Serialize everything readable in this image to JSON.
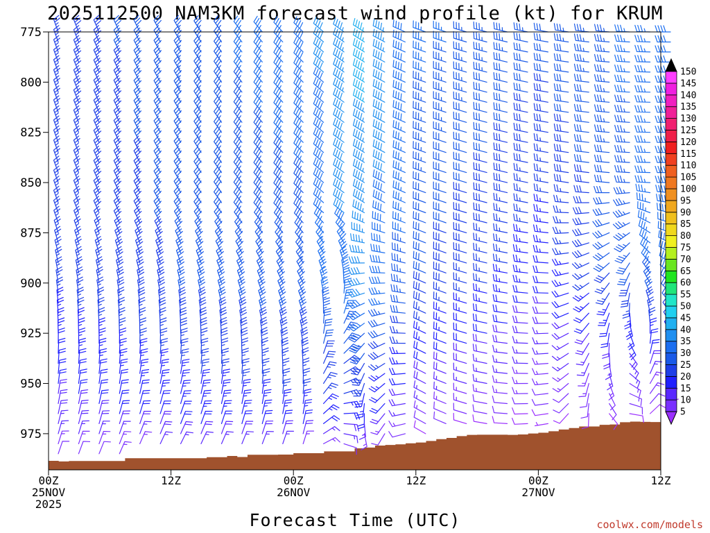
{
  "chart_data": {
    "type": "wind-barb-time-height",
    "title": "2025112500 NAM3KM forecast wind profile (kt) for KRUM",
    "xlabel": "Forecast Time (UTC)",
    "ylabel": "",
    "credit": "coolwx.com/models",
    "x_range_hours": [
      0,
      60
    ],
    "y_range_hpa": [
      775,
      993
    ],
    "y_ticks": [
      {
        "value": 775,
        "label": "775"
      },
      {
        "value": 800,
        "label": "800"
      },
      {
        "value": 825,
        "label": "825"
      },
      {
        "value": 850,
        "label": "850"
      },
      {
        "value": 875,
        "label": "875"
      },
      {
        "value": 900,
        "label": "900"
      },
      {
        "value": 925,
        "label": "925"
      },
      {
        "value": 950,
        "label": "950"
      },
      {
        "value": 975,
        "label": "975"
      }
    ],
    "x_ticks": [
      {
        "hour": 0,
        "lines": [
          "00Z",
          "25NOV",
          "2025"
        ]
      },
      {
        "hour": 12,
        "lines": [
          "12Z"
        ]
      },
      {
        "hour": 24,
        "lines": [
          "00Z",
          "26NOV"
        ]
      },
      {
        "hour": 36,
        "lines": [
          "12Z"
        ]
      },
      {
        "hour": 48,
        "lines": [
          "00Z",
          "27NOV"
        ]
      },
      {
        "hour": 60,
        "lines": [
          "12Z"
        ]
      }
    ],
    "colorbar": {
      "unit": "kt",
      "levels": [
        5,
        10,
        15,
        20,
        25,
        30,
        35,
        40,
        45,
        50,
        55,
        60,
        65,
        70,
        75,
        80,
        85,
        90,
        95,
        100,
        105,
        110,
        115,
        120,
        125,
        130,
        135,
        140,
        145,
        150
      ],
      "colors": [
        "#9b30ff",
        "#7a30ff",
        "#5a28ff",
        "#2020ff",
        "#1e3fe8",
        "#1a5ae8",
        "#1c6ff0",
        "#2090f0",
        "#20b0f0",
        "#20d0f0",
        "#20e6c8",
        "#20e67a",
        "#20e620",
        "#6ae620",
        "#b4f020",
        "#f0f020",
        "#f0d81e",
        "#f0c01e",
        "#f0a81e",
        "#f09020",
        "#f07820",
        "#f06020",
        "#f04020",
        "#f02020",
        "#f0204a",
        "#f02070",
        "#f02098",
        "#f020c0",
        "#f020e0",
        "#ff40ff"
      ],
      "labels": [
        "5",
        "10",
        "15",
        "20",
        "25",
        "30",
        "35",
        "40",
        "45",
        "50",
        "55",
        "60",
        "65",
        "70",
        "75",
        "80",
        "85",
        "90",
        "95",
        "100",
        "105",
        "110",
        "115",
        "120",
        "125",
        "130",
        "135",
        "140",
        "145",
        "150"
      ]
    },
    "terrain": {
      "color": "#a0522d",
      "surface_pressure_hpa": [
        {
          "hour": 0,
          "p": 988.5
        },
        {
          "hour": 1,
          "p": 988.8
        },
        {
          "hour": 2,
          "p": 988.6
        },
        {
          "hour": 4,
          "p": 988.6
        },
        {
          "hour": 7.5,
          "p": 987.2
        },
        {
          "hour": 15.5,
          "p": 986.7
        },
        {
          "hour": 17.5,
          "p": 986.1
        },
        {
          "hour": 18.5,
          "p": 986.6
        },
        {
          "hour": 19.5,
          "p": 985.5
        },
        {
          "hour": 21,
          "p": 985.5
        },
        {
          "hour": 22.5,
          "p": 985.4
        },
        {
          "hour": 24,
          "p": 984.7
        },
        {
          "hour": 26,
          "p": 984.7
        },
        {
          "hour": 27,
          "p": 983.8
        },
        {
          "hour": 29,
          "p": 983.8
        },
        {
          "hour": 30,
          "p": 982.3
        },
        {
          "hour": 31,
          "p": 981.9
        },
        {
          "hour": 32,
          "p": 980.9
        },
        {
          "hour": 33,
          "p": 980.6
        },
        {
          "hour": 34,
          "p": 980.3
        },
        {
          "hour": 35,
          "p": 979.8
        },
        {
          "hour": 36,
          "p": 979.4
        },
        {
          "hour": 37,
          "p": 978.6
        },
        {
          "hour": 38,
          "p": 977.7
        },
        {
          "hour": 39,
          "p": 977.1
        },
        {
          "hour": 40,
          "p": 976.2
        },
        {
          "hour": 41,
          "p": 975.6
        },
        {
          "hour": 42,
          "p": 975.5
        },
        {
          "hour": 45,
          "p": 975.6
        },
        {
          "hour": 46,
          "p": 975.4
        },
        {
          "hour": 47,
          "p": 974.9
        },
        {
          "hour": 48,
          "p": 974.5
        },
        {
          "hour": 49,
          "p": 973.8
        },
        {
          "hour": 50,
          "p": 972.9
        },
        {
          "hour": 51,
          "p": 972.2
        },
        {
          "hour": 52,
          "p": 971.4
        },
        {
          "hour": 54,
          "p": 970.6
        },
        {
          "hour": 55,
          "p": 970.4
        },
        {
          "hour": 56,
          "p": 969.3
        },
        {
          "hour": 57,
          "p": 969.0
        },
        {
          "hour": 58,
          "p": 969.1
        },
        {
          "hour": 59,
          "p": 969.2
        },
        {
          "hour": 60,
          "p": 969.2
        }
      ]
    },
    "barbs": {
      "hours_step": 2,
      "levels_hpa": [
        775,
        780,
        785,
        790,
        795,
        800,
        805,
        810,
        815,
        820,
        825,
        830,
        835,
        840,
        845,
        850,
        855,
        860,
        865,
        870,
        875,
        880,
        885,
        890,
        895,
        900,
        905,
        910,
        915,
        920,
        925,
        930,
        935,
        940,
        945,
        950,
        955,
        960,
        965,
        970,
        975,
        980,
        985
      ],
      "speed_keyframes": [
        {
          "hour": 0,
          "upper": 27,
          "mid": 25,
          "low": 18,
          "surface": 10
        },
        {
          "hour": 12,
          "upper": 33,
          "mid": 30,
          "low": 22,
          "surface": 12
        },
        {
          "hour": 24,
          "upper": 38,
          "mid": 32,
          "low": 24,
          "surface": 12
        },
        {
          "hour": 30,
          "upper": 46,
          "mid": 42,
          "low": 22,
          "surface": 9
        },
        {
          "hour": 36,
          "upper": 36,
          "mid": 30,
          "low": 16,
          "surface": 7
        },
        {
          "hour": 48,
          "upper": 32,
          "mid": 22,
          "low": 12,
          "surface": 6
        },
        {
          "hour": 60,
          "upper": 38,
          "mid": 38,
          "low": 16,
          "surface": 8
        }
      ],
      "direction_keyframes": [
        {
          "hour": 0,
          "upper": 340,
          "low": 20
        },
        {
          "hour": 12,
          "upper": 330,
          "low": 30
        },
        {
          "hour": 24,
          "upper": 315,
          "low": 20
        },
        {
          "hour": 36,
          "upper": 290,
          "low": 300
        },
        {
          "hour": 48,
          "upper": 280,
          "low": 260
        },
        {
          "hour": 60,
          "upper": 270,
          "low": 10
        }
      ]
    }
  }
}
